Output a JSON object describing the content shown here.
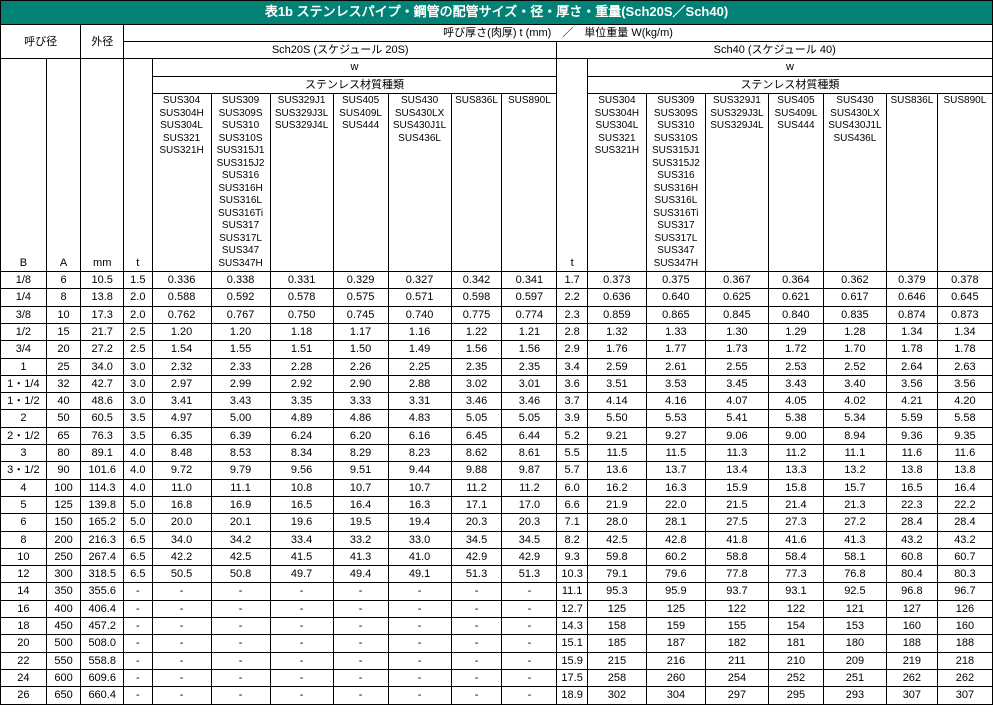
{
  "title": "表1b ステンレスパイプ・鋼管の配管サイズ・径・厚さ・重量(Sch20S／Sch40)",
  "headers": {
    "nominal": "呼び径",
    "outer": "外径",
    "subHeader": "呼び厚さ(肉厚) t (mm)　／　単位重量 W(kg/m)",
    "sch20s": "Sch20S (スケジュール 20S)",
    "sch40": "Sch40 (スケジュール 40)",
    "B": "B",
    "A": "A",
    "mm": "mm",
    "t": "t",
    "w": "w",
    "material": "ステンレス材質種類",
    "mat1": "SUS304\nSUS304H\nSUS304L\nSUS321\nSUS321H",
    "mat2": "SUS309\nSUS309S\nSUS310\nSUS310S\nSUS315J1\nSUS315J2\nSUS316\nSUS316H\nSUS316L\nSUS316Ti\nSUS317\nSUS317L\nSUS347\nSUS347H",
    "mat3": "SUS329J1\nSUS329J3L\nSUS329J4L",
    "mat4": "SUS405\nSUS409L\nSUS444",
    "mat5": "SUS430\nSUS430LX\nSUS430J1L\nSUS436L",
    "mat6": "SUS836L",
    "mat7": "SUS890L"
  },
  "rows": [
    {
      "B": "1/8",
      "A": "6",
      "mm": "10.5",
      "t1": "1.5",
      "c": [
        "0.336",
        "0.338",
        "0.331",
        "0.329",
        "0.327",
        "0.342",
        "0.341"
      ],
      "t2": "1.7",
      "d": [
        "0.373",
        "0.375",
        "0.367",
        "0.364",
        "0.362",
        "0.379",
        "0.378"
      ]
    },
    {
      "B": "1/4",
      "A": "8",
      "mm": "13.8",
      "t1": "2.0",
      "c": [
        "0.588",
        "0.592",
        "0.578",
        "0.575",
        "0.571",
        "0.598",
        "0.597"
      ],
      "t2": "2.2",
      "d": [
        "0.636",
        "0.640",
        "0.625",
        "0.621",
        "0.617",
        "0.646",
        "0.645"
      ]
    },
    {
      "B": "3/8",
      "A": "10",
      "mm": "17.3",
      "t1": "2.0",
      "c": [
        "0.762",
        "0.767",
        "0.750",
        "0.745",
        "0.740",
        "0.775",
        "0.774"
      ],
      "t2": "2.3",
      "d": [
        "0.859",
        "0.865",
        "0.845",
        "0.840",
        "0.835",
        "0.874",
        "0.873"
      ]
    },
    {
      "B": "1/2",
      "A": "15",
      "mm": "21.7",
      "t1": "2.5",
      "c": [
        "1.20",
        "1.20",
        "1.18",
        "1.17",
        "1.16",
        "1.22",
        "1.21"
      ],
      "t2": "2.8",
      "d": [
        "1.32",
        "1.33",
        "1.30",
        "1.29",
        "1.28",
        "1.34",
        "1.34"
      ]
    },
    {
      "B": "3/4",
      "A": "20",
      "mm": "27.2",
      "t1": "2.5",
      "c": [
        "1.54",
        "1.55",
        "1.51",
        "1.50",
        "1.49",
        "1.56",
        "1.56"
      ],
      "t2": "2.9",
      "d": [
        "1.76",
        "1.77",
        "1.73",
        "1.72",
        "1.70",
        "1.78",
        "1.78"
      ]
    },
    {
      "B": "1",
      "A": "25",
      "mm": "34.0",
      "t1": "3.0",
      "c": [
        "2.32",
        "2.33",
        "2.28",
        "2.26",
        "2.25",
        "2.35",
        "2.35"
      ],
      "t2": "3.4",
      "d": [
        "2.59",
        "2.61",
        "2.55",
        "2.53",
        "2.52",
        "2.64",
        "2.63"
      ]
    },
    {
      "B": "1・1/4",
      "A": "32",
      "mm": "42.7",
      "t1": "3.0",
      "c": [
        "2.97",
        "2.99",
        "2.92",
        "2.90",
        "2.88",
        "3.02",
        "3.01"
      ],
      "t2": "3.6",
      "d": [
        "3.51",
        "3.53",
        "3.45",
        "3.43",
        "3.40",
        "3.56",
        "3.56"
      ]
    },
    {
      "B": "1・1/2",
      "A": "40",
      "mm": "48.6",
      "t1": "3.0",
      "c": [
        "3.41",
        "3.43",
        "3.35",
        "3.33",
        "3.31",
        "3.46",
        "3.46"
      ],
      "t2": "3.7",
      "d": [
        "4.14",
        "4.16",
        "4.07",
        "4.05",
        "4.02",
        "4.21",
        "4.20"
      ]
    },
    {
      "B": "2",
      "A": "50",
      "mm": "60.5",
      "t1": "3.5",
      "c": [
        "4.97",
        "5.00",
        "4.89",
        "4.86",
        "4.83",
        "5.05",
        "5.05"
      ],
      "t2": "3.9",
      "d": [
        "5.50",
        "5.53",
        "5.41",
        "5.38",
        "5.34",
        "5.59",
        "5.58"
      ]
    },
    {
      "B": "2・1/2",
      "A": "65",
      "mm": "76.3",
      "t1": "3.5",
      "c": [
        "6.35",
        "6.39",
        "6.24",
        "6.20",
        "6.16",
        "6.45",
        "6.44"
      ],
      "t2": "5.2",
      "d": [
        "9.21",
        "9.27",
        "9.06",
        "9.00",
        "8.94",
        "9.36",
        "9.35"
      ]
    },
    {
      "B": "3",
      "A": "80",
      "mm": "89.1",
      "t1": "4.0",
      "c": [
        "8.48",
        "8.53",
        "8.34",
        "8.29",
        "8.23",
        "8.62",
        "8.61"
      ],
      "t2": "5.5",
      "d": [
        "11.5",
        "11.5",
        "11.3",
        "11.2",
        "11.1",
        "11.6",
        "11.6"
      ]
    },
    {
      "B": "3・1/2",
      "A": "90",
      "mm": "101.6",
      "t1": "4.0",
      "c": [
        "9.72",
        "9.79",
        "9.56",
        "9.51",
        "9.44",
        "9.88",
        "9.87"
      ],
      "t2": "5.7",
      "d": [
        "13.6",
        "13.7",
        "13.4",
        "13.3",
        "13.2",
        "13.8",
        "13.8"
      ]
    },
    {
      "B": "4",
      "A": "100",
      "mm": "114.3",
      "t1": "4.0",
      "c": [
        "11.0",
        "11.1",
        "10.8",
        "10.7",
        "10.7",
        "11.2",
        "11.2"
      ],
      "t2": "6.0",
      "d": [
        "16.2",
        "16.3",
        "15.9",
        "15.8",
        "15.7",
        "16.5",
        "16.4"
      ]
    },
    {
      "B": "5",
      "A": "125",
      "mm": "139.8",
      "t1": "5.0",
      "c": [
        "16.8",
        "16.9",
        "16.5",
        "16.4",
        "16.3",
        "17.1",
        "17.0"
      ],
      "t2": "6.6",
      "d": [
        "21.9",
        "22.0",
        "21.5",
        "21.4",
        "21.3",
        "22.3",
        "22.2"
      ]
    },
    {
      "B": "6",
      "A": "150",
      "mm": "165.2",
      "t1": "5.0",
      "c": [
        "20.0",
        "20.1",
        "19.6",
        "19.5",
        "19.4",
        "20.3",
        "20.3"
      ],
      "t2": "7.1",
      "d": [
        "28.0",
        "28.1",
        "27.5",
        "27.3",
        "27.2",
        "28.4",
        "28.4"
      ]
    },
    {
      "B": "8",
      "A": "200",
      "mm": "216.3",
      "t1": "6.5",
      "c": [
        "34.0",
        "34.2",
        "33.4",
        "33.2",
        "33.0",
        "34.5",
        "34.5"
      ],
      "t2": "8.2",
      "d": [
        "42.5",
        "42.8",
        "41.8",
        "41.6",
        "41.3",
        "43.2",
        "43.2"
      ]
    },
    {
      "B": "10",
      "A": "250",
      "mm": "267.4",
      "t1": "6.5",
      "c": [
        "42.2",
        "42.5",
        "41.5",
        "41.3",
        "41.0",
        "42.9",
        "42.9"
      ],
      "t2": "9.3",
      "d": [
        "59.8",
        "60.2",
        "58.8",
        "58.4",
        "58.1",
        "60.8",
        "60.7"
      ]
    },
    {
      "B": "12",
      "A": "300",
      "mm": "318.5",
      "t1": "6.5",
      "c": [
        "50.5",
        "50.8",
        "49.7",
        "49.4",
        "49.1",
        "51.3",
        "51.3"
      ],
      "t2": "10.3",
      "d": [
        "79.1",
        "79.6",
        "77.8",
        "77.3",
        "76.8",
        "80.4",
        "80.3"
      ]
    },
    {
      "B": "14",
      "A": "350",
      "mm": "355.6",
      "t1": "-",
      "c": [
        "-",
        "-",
        "-",
        "-",
        "-",
        "-",
        "-"
      ],
      "t2": "11.1",
      "d": [
        "95.3",
        "95.9",
        "93.7",
        "93.1",
        "92.5",
        "96.8",
        "96.7"
      ]
    },
    {
      "B": "16",
      "A": "400",
      "mm": "406.4",
      "t1": "-",
      "c": [
        "-",
        "-",
        "-",
        "-",
        "-",
        "-",
        "-"
      ],
      "t2": "12.7",
      "d": [
        "125",
        "125",
        "122",
        "122",
        "121",
        "127",
        "126"
      ]
    },
    {
      "B": "18",
      "A": "450",
      "mm": "457.2",
      "t1": "-",
      "c": [
        "-",
        "-",
        "-",
        "-",
        "-",
        "-",
        "-"
      ],
      "t2": "14.3",
      "d": [
        "158",
        "159",
        "155",
        "154",
        "153",
        "160",
        "160"
      ]
    },
    {
      "B": "20",
      "A": "500",
      "mm": "508.0",
      "t1": "-",
      "c": [
        "-",
        "-",
        "-",
        "-",
        "-",
        "-",
        "-"
      ],
      "t2": "15.1",
      "d": [
        "185",
        "187",
        "182",
        "181",
        "180",
        "188",
        "188"
      ]
    },
    {
      "B": "22",
      "A": "550",
      "mm": "558.8",
      "t1": "-",
      "c": [
        "-",
        "-",
        "-",
        "-",
        "-",
        "-",
        "-"
      ],
      "t2": "15.9",
      "d": [
        "215",
        "216",
        "211",
        "210",
        "209",
        "219",
        "218"
      ]
    },
    {
      "B": "24",
      "A": "600",
      "mm": "609.6",
      "t1": "-",
      "c": [
        "-",
        "-",
        "-",
        "-",
        "-",
        "-",
        "-"
      ],
      "t2": "17.5",
      "d": [
        "258",
        "260",
        "254",
        "252",
        "251",
        "262",
        "262"
      ]
    },
    {
      "B": "26",
      "A": "650",
      "mm": "660.4",
      "t1": "-",
      "c": [
        "-",
        "-",
        "-",
        "-",
        "-",
        "-",
        "-"
      ],
      "t2": "18.9",
      "d": [
        "302",
        "304",
        "297",
        "295",
        "293",
        "307",
        "307"
      ]
    }
  ]
}
